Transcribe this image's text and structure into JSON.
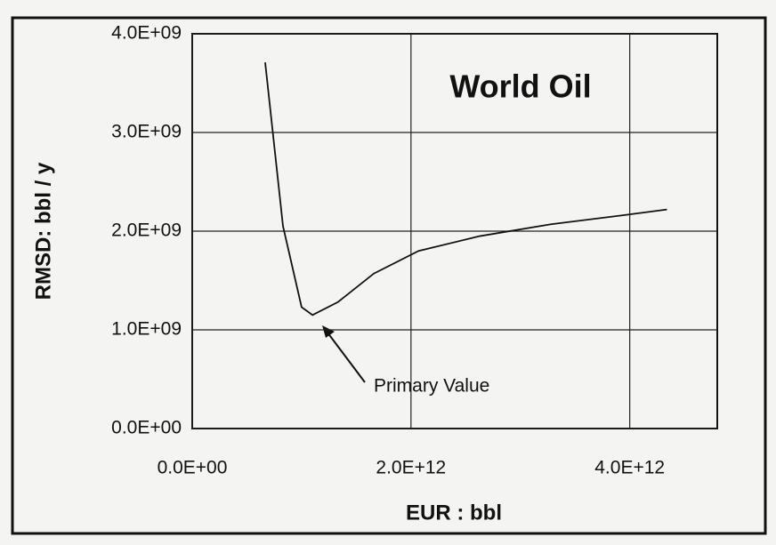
{
  "chart_data": {
    "type": "line",
    "title": "World Oil",
    "x_label": "EUR : bbl",
    "y_label": "RMSD: bbl / y",
    "annotation": "Primary Value",
    "x": [
      667000000000.0,
      830000000000.0,
      1000000000000.0,
      1100000000000.0,
      1330000000000.0,
      1660000000000.0,
      2070000000000.0,
      2630000000000.0,
      3280000000000.0,
      3930000000000.0,
      4340000000000.0
    ],
    "values": [
      3710000000.0,
      2050000000.0,
      1230000000.0,
      1150000000.0,
      1280000000.0,
      1570000000.0,
      1800000000.0,
      1950000000.0,
      2070000000.0,
      2160000000.0,
      2220000000.0
    ],
    "color": "#111111",
    "xlim": [
      0,
      4800000000000.0
    ],
    "ylim": [
      0,
      4000000000.0
    ],
    "xticks": [
      {
        "value": 0,
        "label": "0.0E+00"
      },
      {
        "value": 2000000000000.0,
        "label": "2.0E+12"
      },
      {
        "value": 4000000000000.0,
        "label": "4.0E+12"
      }
    ],
    "yticks": [
      {
        "value": 0,
        "label": "0.0E+00"
      },
      {
        "value": 1000000000.0,
        "label": "1.0E+09"
      },
      {
        "value": 2000000000.0,
        "label": "2.0E+09"
      },
      {
        "value": 3000000000.0,
        "label": "3.0E+09"
      },
      {
        "value": 4000000000.0,
        "label": "4.0E+09"
      }
    ],
    "grid": true
  }
}
